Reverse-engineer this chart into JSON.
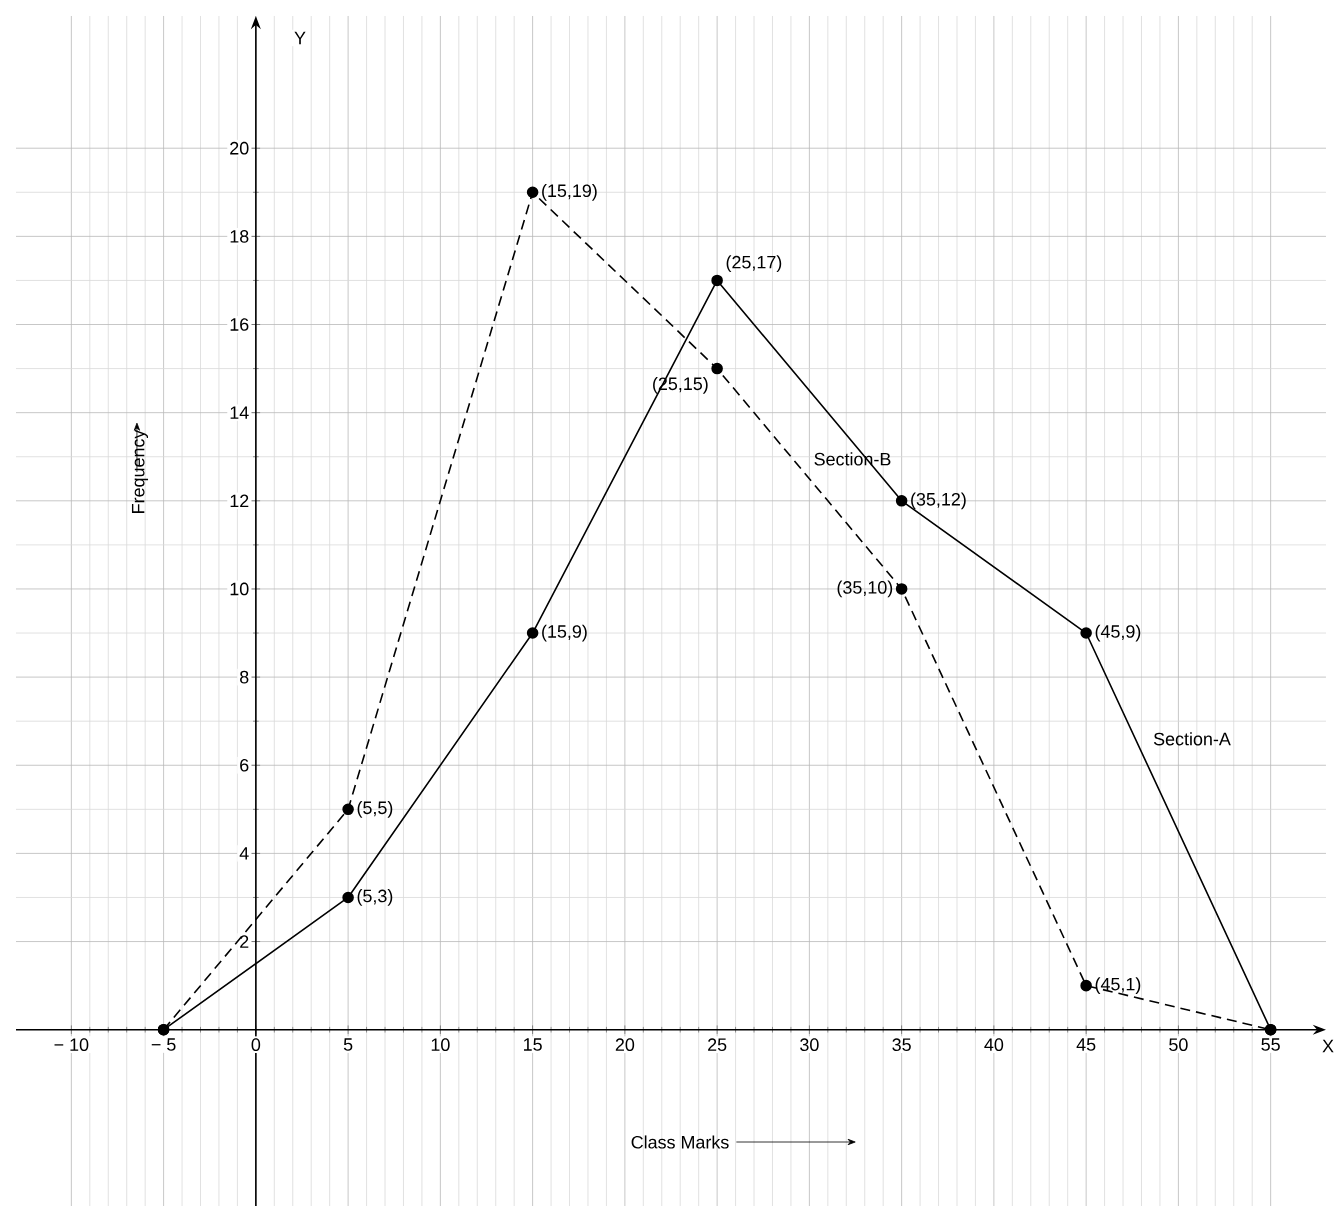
{
  "chart_data": {
    "type": "line",
    "xlabel": "Class Marks",
    "ylabel": "Frequency",
    "x": [
      -5,
      5,
      15,
      25,
      35,
      45,
      55
    ],
    "series": [
      {
        "name": "Section-A",
        "color": "#000000",
        "line_style": "solid",
        "values": [
          0,
          3,
          9,
          17,
          12,
          9,
          0
        ]
      },
      {
        "name": "Section-B",
        "color": "#000000",
        "line_style": "dashed",
        "values": [
          0,
          5,
          19,
          15,
          10,
          1,
          0
        ]
      }
    ],
    "xlim": [
      -13,
      58
    ],
    "ylim": [
      -4,
      23
    ],
    "xticks": [
      {
        "value": -10,
        "label": "− 10"
      },
      {
        "value": -5,
        "label": "− 5"
      },
      0,
      5,
      10,
      15,
      20,
      25,
      30,
      35,
      40,
      45,
      50,
      55
    ],
    "yticks": [
      2,
      4,
      6,
      8,
      10,
      12,
      14,
      16,
      18,
      20
    ],
    "annotations": [
      "X",
      "Y",
      {
        "text": "(5,3)",
        "x": 5,
        "y": 3
      },
      {
        "text": "(15,9)",
        "x": 15,
        "y": 9
      },
      {
        "text": "(25,17)",
        "x": 25,
        "y": 17
      },
      {
        "text": "(35,12)",
        "x": 35,
        "y": 12
      },
      {
        "text": "(45,9)",
        "x": 45,
        "y": 9
      },
      {
        "text": "(5,5)",
        "x": 5,
        "y": 5
      },
      {
        "text": "(15,19)",
        "x": 15,
        "y": 19
      },
      {
        "text": "(25,15)",
        "x": 25,
        "y": 15
      },
      {
        "text": "(35,10)",
        "x": 35,
        "y": 10
      },
      {
        "text": "(45,1)",
        "x": 45,
        "y": 1
      }
    ],
    "grid": true,
    "marker": "circle"
  }
}
